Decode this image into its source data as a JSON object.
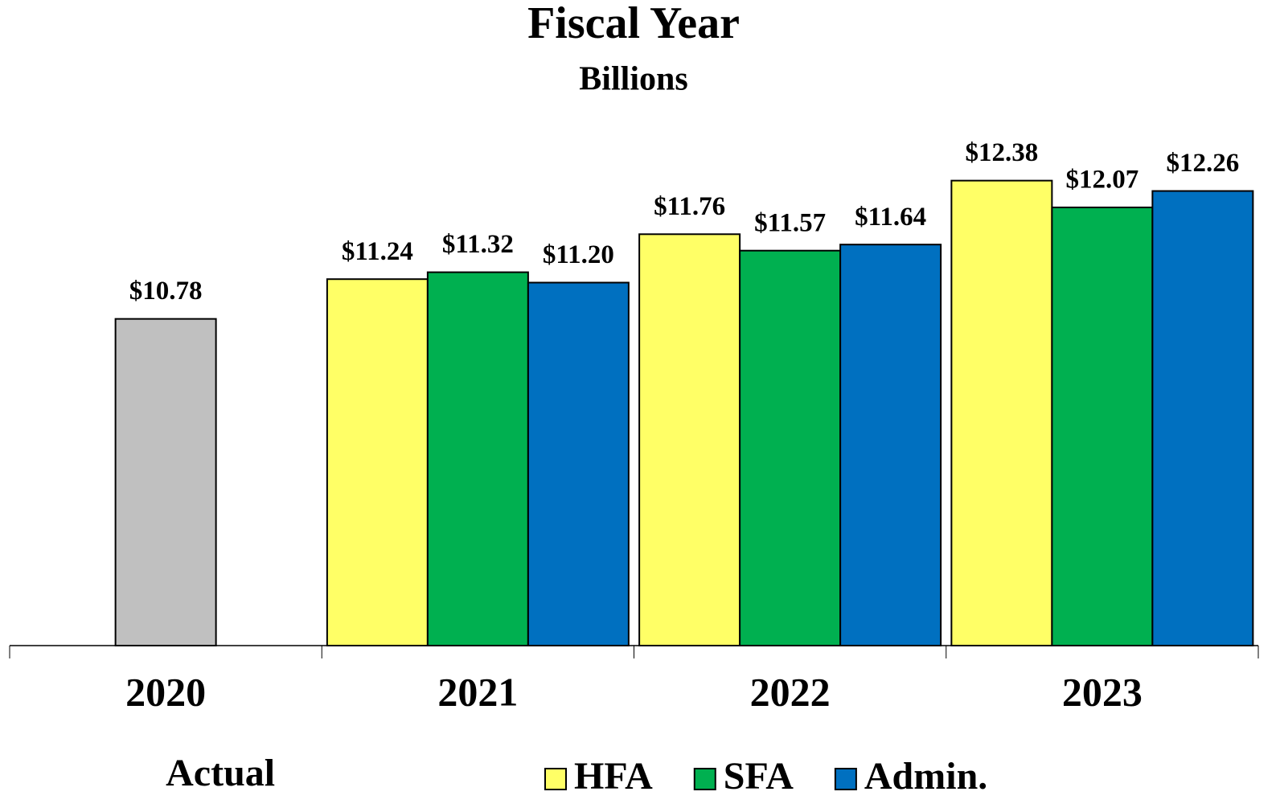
{
  "chart_data": {
    "type": "bar",
    "title": "Fiscal Year",
    "subtitle": "Billions",
    "categories": [
      "2020",
      "2021",
      "2022",
      "2023"
    ],
    "series": [
      {
        "name": "Actual",
        "color": "#c0c0c0",
        "values": [
          10.78,
          null,
          null,
          null
        ],
        "value_labels": [
          "$10.78",
          null,
          null,
          null
        ]
      },
      {
        "name": "HFA",
        "color": "#ffff66",
        "values": [
          null,
          11.24,
          11.76,
          12.38
        ],
        "value_labels": [
          null,
          "$11.24",
          "$11.76",
          "$12.38"
        ]
      },
      {
        "name": "SFA",
        "color": "#00b050",
        "values": [
          null,
          11.32,
          11.57,
          12.07
        ],
        "value_labels": [
          null,
          "$11.32",
          "$11.57",
          "$12.07"
        ]
      },
      {
        "name": "Admin.",
        "color": "#0070c0",
        "values": [
          null,
          11.2,
          11.64,
          12.26
        ],
        "value_labels": [
          null,
          "$11.20",
          "$11.64",
          "$12.26"
        ]
      }
    ],
    "ylim": [
      7,
      13
    ]
  }
}
